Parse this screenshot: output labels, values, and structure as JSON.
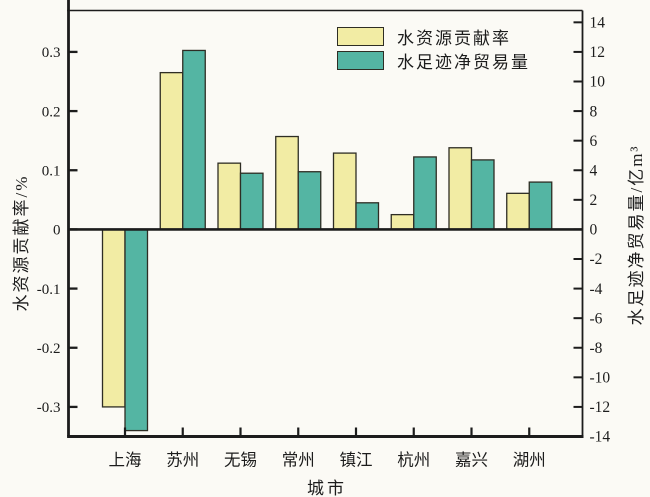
{
  "chart_data": {
    "type": "bar",
    "title": "",
    "categories": [
      "上海",
      "苏州",
      "无锡",
      "常州",
      "镇江",
      "杭州",
      "嘉兴",
      "湖州"
    ],
    "series": [
      {
        "name": "水资源贡献率",
        "axis": "left",
        "color": "#f2eca4",
        "values": [
          -0.3,
          0.265,
          0.112,
          0.157,
          0.129,
          0.025,
          0.138,
          0.061
        ]
      },
      {
        "name": "水足迹净贸易量",
        "axis": "right",
        "color": "#54b5a3",
        "values": [
          -13.6,
          12.1,
          3.8,
          3.9,
          1.8,
          4.9,
          4.7,
          3.2
        ]
      }
    ],
    "axes": {
      "left": {
        "label": "水资源贡献率/%",
        "range": [
          -0.35,
          0.37
        ],
        "ticks": [
          -0.3,
          -0.2,
          -0.1,
          0,
          0.1,
          0.2,
          0.3
        ],
        "tick_labels": [
          "-0.3",
          "-0.2",
          "-0.1",
          "0",
          "0.1",
          "0.2",
          "0.3"
        ]
      },
      "right": {
        "label": "水足迹净贸易量/亿m³",
        "range": [
          -14,
          14.8
        ],
        "ticks": [
          -14,
          -12,
          -10,
          -8,
          -6,
          -4,
          -2,
          0,
          2,
          4,
          6,
          8,
          10,
          12,
          14
        ],
        "tick_labels": [
          "-14",
          "-12",
          "-10",
          "-8",
          "-6",
          "-4",
          "-2",
          "0",
          "2",
          "4",
          "6",
          "8",
          "10",
          "12",
          "14"
        ]
      },
      "x": {
        "label": "城市"
      }
    },
    "legend": {
      "position": "inside-top-right",
      "items": [
        "水资源贡献率",
        "水足迹净贸易量"
      ]
    },
    "grid": false,
    "style": {
      "bar_border": "#2e2d24",
      "axis_color": "#1c1c1c",
      "text_color": "#1c1c1c",
      "background": "#fbfaf5"
    }
  }
}
